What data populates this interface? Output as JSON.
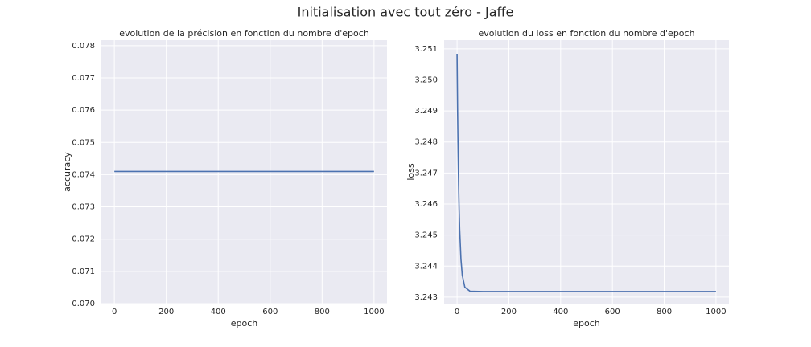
{
  "title": "Initialisation avec tout zéro - Jaffe",
  "chart_data": [
    {
      "type": "line",
      "title": "evolution de la précision en fonction du nombre d'epoch",
      "x_label": "epoch",
      "y_label": "accuracy",
      "x": [
        0,
        1000
      ],
      "values": [
        0.0741,
        0.0741
      ],
      "color": "#4c72b0",
      "xlim": [
        -50,
        1050
      ],
      "ylim": [
        0.07,
        0.07817
      ],
      "xticks": [
        0,
        200,
        400,
        600,
        800,
        1000
      ],
      "yticks": [
        {
          "value": 0.07,
          "label": "0.070"
        },
        0.071,
        0.072,
        0.073,
        0.074,
        0.075,
        0.076,
        0.077,
        0.078
      ],
      "grid": true
    },
    {
      "type": "line",
      "title": "evolution du loss en fonction du nombre d'epoch",
      "x_label": "epoch",
      "y_label": "loss",
      "x": [
        0,
        2,
        4,
        6,
        8,
        10,
        15,
        20,
        30,
        50,
        100,
        200,
        300,
        400,
        500,
        600,
        700,
        800,
        900,
        1000
      ],
      "values": [
        3.25084,
        3.24905,
        3.24768,
        3.24662,
        3.24582,
        3.2452,
        3.24422,
        3.24371,
        3.24332,
        3.24319,
        3.24318,
        3.24318,
        3.24318,
        3.24318,
        3.24318,
        3.24318,
        3.24318,
        3.24318,
        3.24318,
        3.24318
      ],
      "color": "#4c72b0",
      "xlim": [
        -50,
        1050
      ],
      "ylim": [
        3.24279,
        3.25128
      ],
      "xticks": [
        0,
        200,
        400,
        600,
        800,
        1000
      ],
      "yticks": [
        3.243,
        3.244,
        3.245,
        3.246,
        3.247,
        3.248,
        3.249,
        {
          "value": 3.25,
          "label": "3.250"
        },
        3.251
      ],
      "grid": true
    }
  ]
}
